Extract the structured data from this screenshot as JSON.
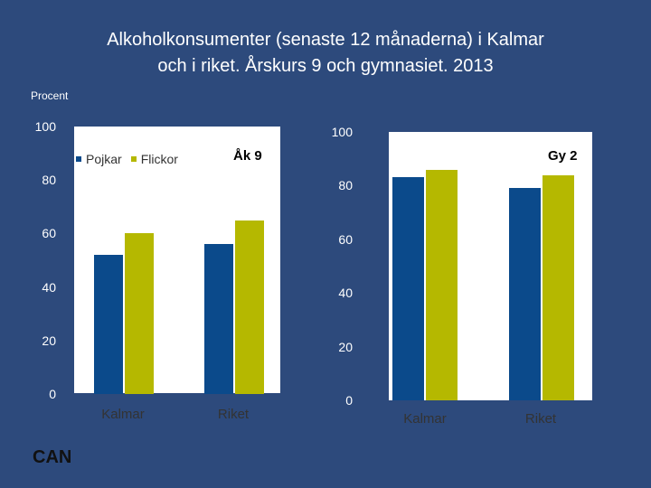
{
  "title_line1": "Alkoholkonsumenter (senaste 12 månaderna) i Kalmar",
  "title_line2": "och i riket. Årskurs 9 och gymnasiet. 2013",
  "unit_label": "Procent",
  "logo_text": "CAN",
  "colors": {
    "pojkar": "#0b4a8b",
    "flickor": "#b5b800",
    "background": "#2d4a7c"
  },
  "chart_data": [
    {
      "type": "bar",
      "panel_label": "Åk 9",
      "categories": [
        "Kalmar",
        "Riket"
      ],
      "series": [
        {
          "name": "Pojkar",
          "values": [
            52,
            56
          ]
        },
        {
          "name": "Flickor",
          "values": [
            60,
            65
          ]
        }
      ],
      "ylim": [
        0,
        100
      ],
      "yticks": [
        "100",
        "80",
        "60",
        "40",
        "20",
        "0"
      ],
      "legend": {
        "placement": "top-left",
        "entries": [
          "Pojkar",
          "Flickor"
        ]
      },
      "grid": false
    },
    {
      "type": "bar",
      "panel_label": "Gy 2",
      "categories": [
        "Kalmar",
        "Riket"
      ],
      "series": [
        {
          "name": "Pojkar",
          "values": [
            83,
            79
          ]
        },
        {
          "name": "Flickor",
          "values": [
            86,
            84
          ]
        }
      ],
      "ylim": [
        0,
        100
      ],
      "yticks": [
        "100",
        "80",
        "60",
        "40",
        "20",
        "0"
      ],
      "grid": false
    }
  ]
}
